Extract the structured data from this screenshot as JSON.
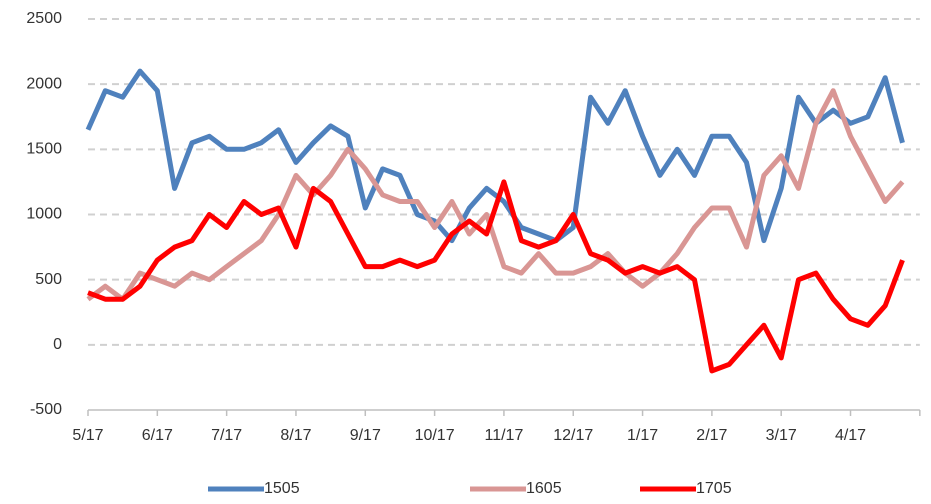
{
  "chart_data": {
    "type": "line",
    "categories": [
      "5/17",
      null,
      null,
      null,
      "6/17",
      null,
      null,
      null,
      "7/17",
      null,
      null,
      null,
      "8/17",
      null,
      null,
      null,
      "9/17",
      null,
      null,
      null,
      "10/17",
      null,
      null,
      null,
      "11/17",
      null,
      null,
      null,
      "12/17",
      null,
      null,
      null,
      "1/17",
      null,
      null,
      null,
      "2/17",
      null,
      null,
      null,
      "3/17",
      null,
      null,
      null,
      "4/17",
      null,
      null,
      null
    ],
    "series": [
      {
        "name": "1505",
        "color": "#4f81bd",
        "values": [
          1650,
          1950,
          1900,
          2100,
          1950,
          1200,
          1550,
          1600,
          1500,
          1500,
          1550,
          1650,
          1400,
          1550,
          1680,
          1600,
          1050,
          1350,
          1300,
          1000,
          950,
          800,
          1050,
          1200,
          1100,
          900,
          850,
          800,
          900,
          1900,
          1700,
          1950,
          1600,
          1300,
          1500,
          1300,
          1600,
          1600,
          1400,
          800,
          1200,
          1900,
          1700,
          1800,
          1700,
          1750,
          2050,
          1550
        ]
      },
      {
        "name": "1605",
        "color": "#d99694",
        "values": [
          350,
          450,
          350,
          550,
          500,
          450,
          550,
          500,
          600,
          700,
          800,
          1000,
          1300,
          1150,
          1300,
          1500,
          1350,
          1150,
          1100,
          1100,
          900,
          1100,
          850,
          1000,
          600,
          550,
          700,
          550,
          550,
          600,
          700,
          550,
          450,
          550,
          700,
          900,
          1050,
          1050,
          750,
          1300,
          1450,
          1200,
          1700,
          1950,
          1600,
          1350,
          1100,
          1250
        ]
      },
      {
        "name": "1705",
        "color": "#ff0000",
        "values": [
          400,
          350,
          350,
          450,
          650,
          750,
          800,
          1000,
          900,
          1100,
          1000,
          1050,
          750,
          1200,
          1100,
          850,
          600,
          600,
          650,
          600,
          650,
          850,
          950,
          850,
          1250,
          800,
          750,
          800,
          1000,
          700,
          650,
          550,
          600,
          550,
          600,
          500,
          -200,
          -150,
          0,
          150,
          -100,
          500,
          550,
          350,
          200,
          150,
          300,
          650
        ]
      }
    ],
    "ylim": [
      -500,
      2500
    ],
    "yticks": [
      -500,
      0,
      500,
      1000,
      1500,
      2000,
      2500
    ],
    "grid": true,
    "legend": "bottom"
  }
}
